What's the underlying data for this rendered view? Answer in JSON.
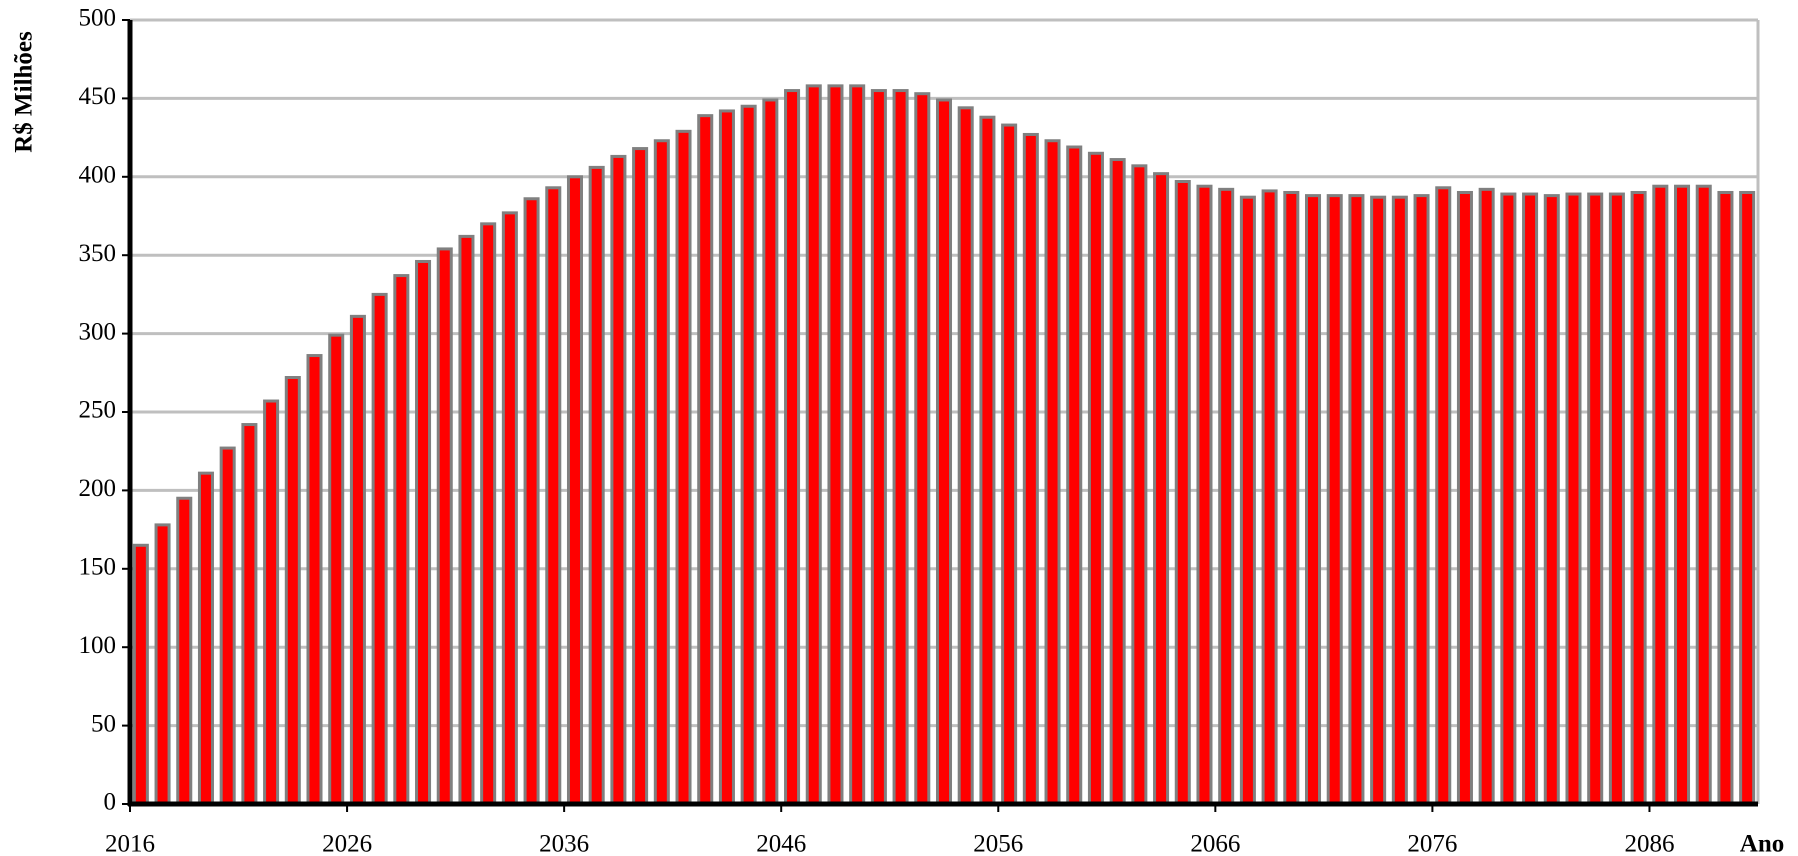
{
  "chart_data": {
    "type": "bar",
    "y_label": "R$ Milhões",
    "x_label": "Ano",
    "x": [
      2016,
      2017,
      2018,
      2019,
      2020,
      2021,
      2022,
      2023,
      2024,
      2025,
      2026,
      2027,
      2028,
      2029,
      2030,
      2031,
      2032,
      2033,
      2034,
      2035,
      2036,
      2037,
      2038,
      2039,
      2040,
      2041,
      2042,
      2043,
      2044,
      2045,
      2046,
      2047,
      2048,
      2049,
      2050,
      2051,
      2052,
      2053,
      2054,
      2055,
      2056,
      2057,
      2058,
      2059,
      2060,
      2061,
      2062,
      2063,
      2064,
      2065,
      2066,
      2067,
      2068,
      2069,
      2070,
      2071,
      2072,
      2073,
      2074,
      2075,
      2076,
      2077,
      2078,
      2079,
      2080,
      2081,
      2082,
      2083,
      2084,
      2085,
      2086,
      2087,
      2088,
      2089,
      2090
    ],
    "values": [
      165,
      178,
      195,
      211,
      227,
      242,
      257,
      272,
      286,
      299,
      311,
      325,
      337,
      346,
      354,
      362,
      370,
      377,
      386,
      393,
      400,
      406,
      413,
      418,
      423,
      429,
      439,
      442,
      445,
      449,
      455,
      458,
      458,
      458,
      455,
      455,
      453,
      449,
      444,
      438,
      433,
      427,
      423,
      419,
      415,
      411,
      407,
      402,
      397,
      394,
      392,
      387,
      391,
      390,
      388,
      388,
      388,
      387,
      387,
      388,
      393,
      390,
      392,
      389,
      389,
      388,
      389,
      389,
      389,
      390,
      394,
      394,
      394,
      390,
      390
    ],
    "color": "#ff0000",
    "edge_color": "#808080",
    "xlim": [
      2016,
      2091
    ],
    "xticks": [
      2016,
      2026,
      2036,
      2046,
      2056,
      2066,
      2076,
      2086
    ],
    "ylim": [
      0,
      500
    ],
    "yticks": [
      0,
      50,
      100,
      150,
      200,
      250,
      300,
      350,
      400,
      450,
      500
    ],
    "grid": true
  }
}
